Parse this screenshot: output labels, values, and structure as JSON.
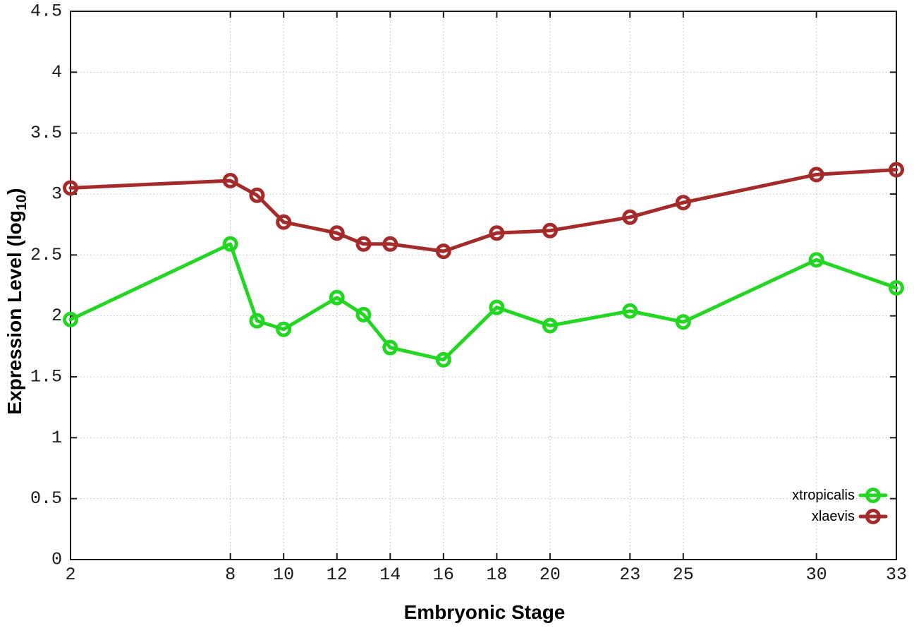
{
  "chart_data": {
    "type": "line",
    "title": "",
    "xlabel": "Embryonic Stage",
    "ylabel": "Expression Level (log10)",
    "ylabel_parts": {
      "pre": "Expression Level (log",
      "sub": "10",
      "post": ")"
    },
    "xlim": [
      2,
      33
    ],
    "ylim": [
      0,
      4.5
    ],
    "grid": "dotted",
    "legend_position": "bottom-right",
    "x": [
      2,
      8,
      9,
      10,
      12,
      13,
      14,
      16,
      18,
      20,
      23,
      25,
      30,
      33
    ],
    "x_ticks": [
      2,
      8,
      10,
      12,
      14,
      16,
      18,
      20,
      23,
      25,
      30,
      33
    ],
    "x_tick_labels": [
      "2",
      "8",
      "10",
      "12",
      "14",
      "16",
      "18",
      "20",
      "23",
      "25",
      "30",
      "33"
    ],
    "y_ticks": [
      0,
      0.5,
      1,
      1.5,
      2,
      2.5,
      3,
      3.5,
      4,
      4.5
    ],
    "y_tick_labels": [
      "0",
      "0.5",
      "1",
      "1.5",
      "2",
      "2.5",
      "3",
      "3.5",
      "4",
      "4.5"
    ],
    "series": [
      {
        "name": "xtropicalis",
        "color": "#22d622",
        "marker": "open-circle",
        "values": [
          1.97,
          2.59,
          1.96,
          1.89,
          2.15,
          2.01,
          1.74,
          1.64,
          2.07,
          1.92,
          2.04,
          1.95,
          2.46,
          2.23
        ]
      },
      {
        "name": "xlaevis",
        "color": "#a52a2a",
        "marker": "open-circle",
        "values": [
          3.05,
          3.11,
          2.99,
          2.77,
          2.68,
          2.59,
          2.59,
          2.53,
          2.68,
          2.7,
          2.81,
          2.93,
          3.16,
          3.2
        ]
      }
    ],
    "colors": {
      "grid": "#bcbcbc",
      "axis": "#1c1c1c",
      "text": "#1a1a1a"
    }
  }
}
